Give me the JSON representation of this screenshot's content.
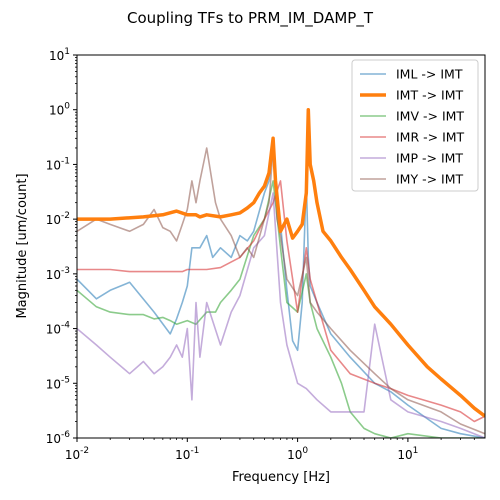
{
  "chart_data": {
    "type": "line",
    "title": "Coupling TFs to PRM_IM_DAMP_T",
    "xlabel": "Frequency [Hz]",
    "ylabel": "Magnitude [um/count]",
    "xscale": "log",
    "yscale": "log",
    "xlim": [
      0.01,
      50
    ],
    "ylim": [
      1e-06,
      10
    ],
    "x_ticks": [
      0.01,
      0.1,
      1,
      10
    ],
    "x_tick_labels": [
      "10^-2",
      "10^-1",
      "10^0",
      "10^1"
    ],
    "y_ticks": [
      1e-06,
      1e-05,
      0.0001,
      0.001,
      0.01,
      0.1,
      1,
      10
    ],
    "y_tick_labels": [
      "10^-6",
      "10^-5",
      "10^-4",
      "10^-3",
      "10^-2",
      "10^-1",
      "10^0",
      "10^1"
    ],
    "grid": false,
    "legend_position": "top-right",
    "series": [
      {
        "name": "IML -> IMT",
        "color": "#1f77b4",
        "x": [
          0.01,
          0.015,
          0.02,
          0.03,
          0.05,
          0.07,
          0.08,
          0.09,
          0.1,
          0.11,
          0.13,
          0.15,
          0.17,
          0.2,
          0.25,
          0.3,
          0.35,
          0.4,
          0.5,
          0.55,
          0.6,
          0.65,
          0.7,
          0.8,
          0.9,
          1.0,
          1.1,
          1.2,
          1.25,
          1.3,
          1.5,
          2,
          3,
          5,
          7,
          10,
          20,
          30,
          50
        ],
        "y": [
          0.0008,
          0.00035,
          0.0005,
          0.0007,
          0.0002,
          8e-05,
          0.00015,
          0.0003,
          0.0006,
          0.003,
          0.003,
          0.005,
          0.002,
          0.003,
          0.002,
          0.005,
          0.004,
          0.006,
          0.03,
          0.05,
          0.2,
          0.03,
          0.008,
          0.0005,
          6e-05,
          4e-05,
          0.0003,
          0.05,
          0.002,
          0.0006,
          0.0003,
          8e-05,
          3e-05,
          1e-05,
          7e-06,
          4e-06,
          1.5e-06,
          1.2e-06,
          1e-06
        ]
      },
      {
        "name": "IMT -> IMT",
        "color": "#ff7f0e",
        "x": [
          0.01,
          0.02,
          0.04,
          0.06,
          0.08,
          0.1,
          0.12,
          0.13,
          0.15,
          0.2,
          0.25,
          0.3,
          0.35,
          0.4,
          0.45,
          0.5,
          0.55,
          0.6,
          0.63,
          0.7,
          0.8,
          0.9,
          1.0,
          1.1,
          1.2,
          1.25,
          1.3,
          1.4,
          1.5,
          1.7,
          2.0,
          2.5,
          3,
          4,
          5,
          7,
          10,
          15,
          20,
          30,
          40,
          50
        ],
        "y": [
          0.01,
          0.01,
          0.011,
          0.012,
          0.014,
          0.012,
          0.012,
          0.011,
          0.012,
          0.011,
          0.012,
          0.013,
          0.016,
          0.02,
          0.03,
          0.04,
          0.07,
          0.3,
          0.05,
          0.006,
          0.01,
          0.0045,
          0.006,
          0.008,
          0.03,
          1.0,
          0.1,
          0.05,
          0.02,
          0.006,
          0.004,
          0.002,
          0.0012,
          0.0005,
          0.00025,
          0.00012,
          5e-05,
          2e-05,
          1.2e-05,
          6e-06,
          3.5e-06,
          2.5e-06
        ]
      },
      {
        "name": "IMV -> IMT",
        "color": "#2ca02c",
        "x": [
          0.01,
          0.015,
          0.02,
          0.03,
          0.04,
          0.05,
          0.06,
          0.07,
          0.08,
          0.1,
          0.12,
          0.15,
          0.18,
          0.2,
          0.25,
          0.3,
          0.4,
          0.5,
          0.6,
          0.7,
          0.8,
          1.0,
          1.2,
          1.3,
          1.5,
          2,
          2.5,
          3,
          4,
          5,
          7,
          10,
          20,
          50
        ],
        "y": [
          0.0005,
          0.00025,
          0.0002,
          0.00018,
          0.00018,
          0.00015,
          0.00016,
          0.00014,
          0.00012,
          0.00014,
          0.00012,
          0.0002,
          0.0002,
          0.0003,
          0.0005,
          0.0008,
          0.005,
          0.01,
          0.05,
          0.003,
          0.0003,
          0.0002,
          0.001,
          0.0003,
          0.0001,
          3e-05,
          1e-05,
          3e-06,
          1.5e-06,
          1.2e-06,
          1e-06,
          1.2e-06,
          1e-06,
          1e-06
        ]
      },
      {
        "name": "IMR -> IMT",
        "color": "#d62728",
        "x": [
          0.01,
          0.02,
          0.03,
          0.05,
          0.07,
          0.09,
          0.1,
          0.15,
          0.2,
          0.3,
          0.4,
          0.5,
          0.6,
          0.7,
          0.8,
          1.0,
          1.2,
          1.3,
          1.5,
          2,
          3,
          5,
          7,
          10,
          20,
          30,
          40,
          50
        ],
        "y": [
          0.0012,
          0.0012,
          0.0011,
          0.0011,
          0.0011,
          0.0011,
          0.0012,
          0.0012,
          0.0013,
          0.002,
          0.004,
          0.01,
          0.02,
          0.05,
          0.004,
          0.0002,
          0.003,
          0.0008,
          0.0003,
          4e-05,
          1.5e-05,
          1e-05,
          8e-06,
          6e-06,
          4e-06,
          3e-06,
          2e-06,
          2.5e-06
        ]
      },
      {
        "name": "IMP -> IMT",
        "color": "#9467bd",
        "x": [
          0.01,
          0.015,
          0.02,
          0.03,
          0.04,
          0.05,
          0.06,
          0.07,
          0.08,
          0.09,
          0.1,
          0.11,
          0.12,
          0.13,
          0.15,
          0.2,
          0.25,
          0.3,
          0.4,
          0.5,
          0.6,
          0.7,
          0.8,
          1.0,
          1.2,
          1.5,
          2,
          3,
          4,
          5,
          7,
          10,
          20,
          30,
          50
        ],
        "y": [
          0.0001,
          5e-05,
          3e-05,
          1.5e-05,
          2.5e-05,
          1.5e-05,
          2e-05,
          3e-05,
          5e-05,
          3e-05,
          0.0001,
          5e-06,
          0.0003,
          3e-05,
          0.0003,
          5e-05,
          0.0002,
          0.0004,
          0.003,
          0.005,
          0.03,
          0.0003,
          5e-05,
          1e-05,
          8e-06,
          5e-06,
          3e-06,
          3e-06,
          3e-06,
          0.00012,
          5e-06,
          3e-06,
          2e-06,
          1.5e-06,
          1e-06
        ]
      },
      {
        "name": "IMY -> IMT",
        "color": "#8c564b",
        "x": [
          0.01,
          0.015,
          0.02,
          0.03,
          0.04,
          0.05,
          0.06,
          0.07,
          0.08,
          0.09,
          0.1,
          0.11,
          0.12,
          0.13,
          0.15,
          0.18,
          0.2,
          0.25,
          0.3,
          0.35,
          0.4,
          0.5,
          0.55,
          0.6,
          0.65,
          0.7,
          0.8,
          1.0,
          1.2,
          1.3,
          1.5,
          2,
          3,
          5,
          7,
          10,
          20,
          30,
          50
        ],
        "y": [
          0.006,
          0.01,
          0.008,
          0.006,
          0.008,
          0.015,
          0.007,
          0.006,
          0.004,
          0.008,
          0.015,
          0.05,
          0.02,
          0.05,
          0.2,
          0.02,
          0.01,
          0.005,
          0.002,
          0.003,
          0.002,
          0.01,
          0.02,
          0.2,
          0.01,
          0.005,
          0.0008,
          0.0004,
          0.002,
          0.0003,
          0.0002,
          0.0001,
          4e-05,
          1.5e-05,
          8e-06,
          5e-06,
          3e-06,
          1.8e-06,
          1.2e-06
        ]
      }
    ]
  }
}
